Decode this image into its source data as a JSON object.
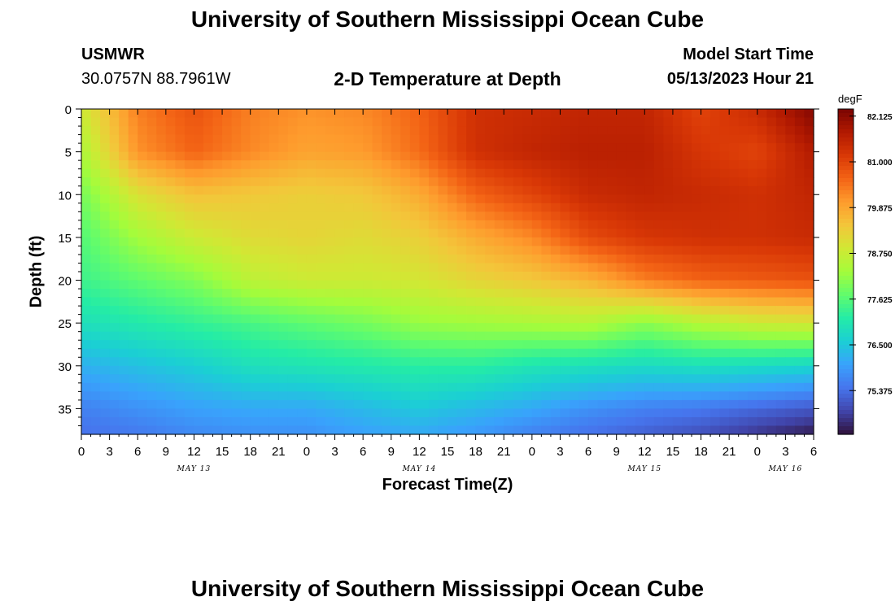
{
  "header": {
    "title": "University of Southern Mississippi Ocean Cube",
    "station": "USMWR",
    "coords": "30.0757N  88.7961W",
    "subtitle": "2-D Temperature at Depth",
    "model_start_label": "Model Start Time",
    "model_start_value": "05/13/2023 Hour 21"
  },
  "footer": {
    "title": "University of Southern Mississippi Ocean Cube"
  },
  "chart_data": {
    "type": "heatmap",
    "title": "2-D Temperature at Depth",
    "xlabel": "Forecast Time(Z)",
    "ylabel": "Depth (ft)",
    "x_unit": "forecast hour",
    "xlim": [
      0,
      78
    ],
    "ylim": [
      38,
      0
    ],
    "x_ticks": [
      {
        "x": 0,
        "label": "0"
      },
      {
        "x": 3,
        "label": "3"
      },
      {
        "x": 6,
        "label": "6"
      },
      {
        "x": 9,
        "label": "9"
      },
      {
        "x": 12,
        "label": "12"
      },
      {
        "x": 15,
        "label": "15"
      },
      {
        "x": 18,
        "label": "18"
      },
      {
        "x": 21,
        "label": "21"
      },
      {
        "x": 24,
        "label": "0"
      },
      {
        "x": 27,
        "label": "3"
      },
      {
        "x": 30,
        "label": "6"
      },
      {
        "x": 33,
        "label": "9"
      },
      {
        "x": 36,
        "label": "12"
      },
      {
        "x": 39,
        "label": "15"
      },
      {
        "x": 42,
        "label": "18"
      },
      {
        "x": 45,
        "label": "21"
      },
      {
        "x": 48,
        "label": "0"
      },
      {
        "x": 51,
        "label": "3"
      },
      {
        "x": 54,
        "label": "6"
      },
      {
        "x": 57,
        "label": "9"
      },
      {
        "x": 60,
        "label": "12"
      },
      {
        "x": 63,
        "label": "15"
      },
      {
        "x": 66,
        "label": "18"
      },
      {
        "x": 69,
        "label": "21"
      },
      {
        "x": 72,
        "label": "0"
      },
      {
        "x": 75,
        "label": "3"
      },
      {
        "x": 78,
        "label": "6"
      }
    ],
    "date_labels": [
      {
        "x": 12,
        "label": "MAY 13"
      },
      {
        "x": 36,
        "label": "MAY 14"
      },
      {
        "x": 60,
        "label": "MAY 15"
      },
      {
        "x": 75,
        "label": "MAY 16"
      }
    ],
    "y_ticks": [
      0,
      5,
      10,
      15,
      20,
      25,
      30,
      35
    ],
    "colorbar": {
      "unit": "degF",
      "min": 74.3,
      "max": 82.3,
      "labels": [
        "82.125",
        "81.000",
        "79.875",
        "78.750",
        "77.625",
        "76.500",
        "75.375"
      ],
      "label_values": [
        82.125,
        81.0,
        79.875,
        78.75,
        77.625,
        76.5,
        75.375
      ]
    },
    "colormap": [
      "#30123b",
      "#4145ab",
      "#4675ed",
      "#39a2fc",
      "#1bcfd4",
      "#24eca6",
      "#61fc6c",
      "#a4fc3b",
      "#d1e834",
      "#f3c63a",
      "#fe9b2d",
      "#f36315",
      "#d93806",
      "#b11901",
      "#7a0402"
    ],
    "series": [
      {
        "name": "",
        "depths": [
          0,
          5,
          10,
          15,
          20,
          25,
          30,
          35,
          38
        ],
        "times": [
          0,
          6,
          12,
          18,
          24,
          30,
          36,
          42,
          48,
          54,
          60,
          66,
          72,
          78
        ],
        "values": [
          [
            78.8,
            80.3,
            80.8,
            80.3,
            80.1,
            80.2,
            80.6,
            81.3,
            81.4,
            81.5,
            81.5,
            81.0,
            81.4,
            82.2
          ],
          [
            78.4,
            80.1,
            80.6,
            80.2,
            79.9,
            80.0,
            80.5,
            81.3,
            81.5,
            81.6,
            81.6,
            81.2,
            81.0,
            81.7
          ],
          [
            77.9,
            79.0,
            79.5,
            79.4,
            79.3,
            79.4,
            79.8,
            80.6,
            81.0,
            81.4,
            81.5,
            81.4,
            81.3,
            81.5
          ],
          [
            77.6,
            78.3,
            78.8,
            79.1,
            79.2,
            79.1,
            79.3,
            79.8,
            80.2,
            80.9,
            81.2,
            81.3,
            81.3,
            81.4
          ],
          [
            77.4,
            77.7,
            78.0,
            78.6,
            78.8,
            78.8,
            78.9,
            79.2,
            79.4,
            79.7,
            80.3,
            80.6,
            80.7,
            80.8
          ],
          [
            76.9,
            77.1,
            77.3,
            77.5,
            77.7,
            77.9,
            78.2,
            78.3,
            78.4,
            78.5,
            78.1,
            78.5,
            78.8,
            78.9
          ],
          [
            76.2,
            76.4,
            76.6,
            76.9,
            77.0,
            77.1,
            77.2,
            77.2,
            77.0,
            76.9,
            76.8,
            76.9,
            76.8,
            76.7
          ],
          [
            75.6,
            75.8,
            76.0,
            76.1,
            76.1,
            76.3,
            76.5,
            76.3,
            76.1,
            75.8,
            75.6,
            75.5,
            75.3,
            75.1
          ],
          [
            75.4,
            75.5,
            75.7,
            75.8,
            75.8,
            76.0,
            76.1,
            75.9,
            75.6,
            75.4,
            75.2,
            75.0,
            74.7,
            74.4
          ]
        ]
      }
    ]
  }
}
